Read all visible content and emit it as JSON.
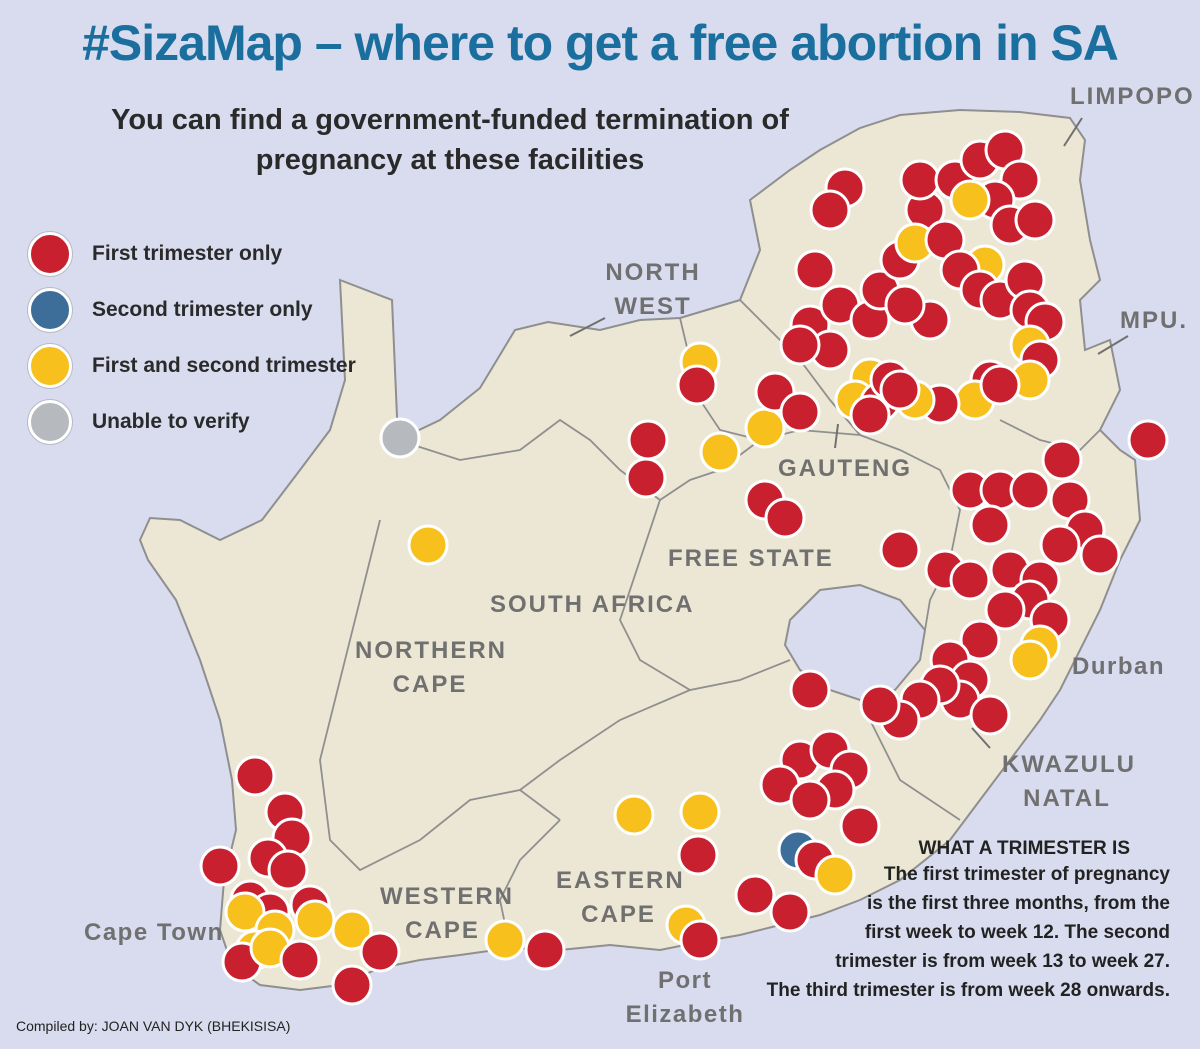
{
  "title": "#SizaMap – where to get a free abortion in SA",
  "subtitle": "You can find a government-funded termination of pregnancy at these facilities",
  "colors": {
    "first_trimester": "#c8202f",
    "second_trimester": "#3d6e99",
    "first_and_second": "#f7c01d",
    "unverified": "#b6b9bd",
    "land": "#ece7d4",
    "border": "#8f8f8f",
    "sea": "#d8dcee"
  },
  "legend": [
    {
      "key": "first_trimester",
      "label": "First trimester only"
    },
    {
      "key": "second_trimester",
      "label": "Second trimester only"
    },
    {
      "key": "first_and_second",
      "label": "First and second trimester"
    },
    {
      "key": "unverified",
      "label": "Unable to verify"
    }
  ],
  "regions": {
    "limpopo": "LIMPOPO",
    "north_west": "NORTH\nWEST",
    "mpumalanga": "MPU.",
    "gauteng": "GAUTENG",
    "free_state": "FREE STATE",
    "south_africa": "SOUTH AFRICA",
    "northern_cape": "NORTHERN\nCAPE",
    "kwazulu_natal": "KWAZULU\nNATAL",
    "western_cape": "WESTERN\nCAPE",
    "eastern_cape": "EASTERN\nCAPE"
  },
  "cities": {
    "cape_town": "Cape Town",
    "port_elizabeth": "Port\nElizabeth",
    "durban": "Durban"
  },
  "note": {
    "heading": "WHAT A TRIMESTER IS",
    "body": "The first trimester of pregnancy\nis the first three months, from the\nfirst week to week 12. The second\ntrimester is from week 13 to week 27.\nThe third trimester is from week 28 onwards."
  },
  "credit": "Compiled by: JOAN VAN DYK (BHEKISISA)"
}
